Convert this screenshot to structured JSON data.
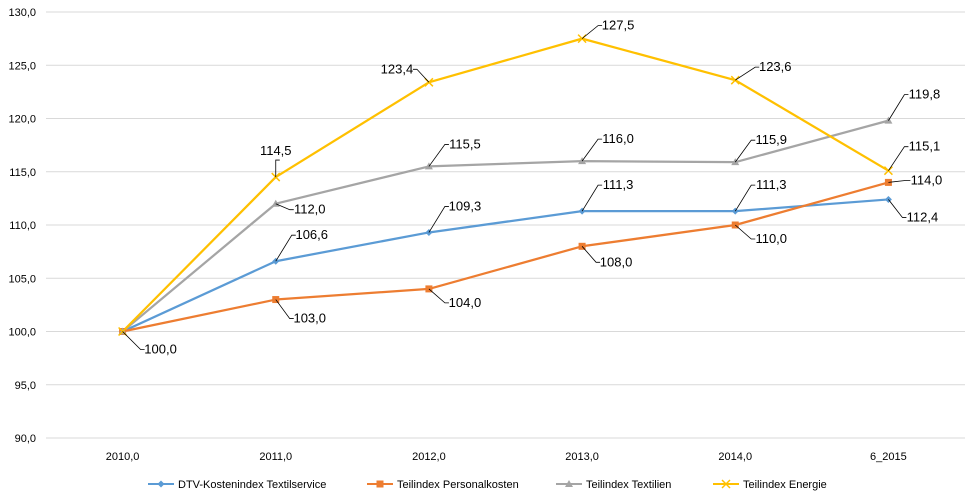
{
  "chart_data": {
    "type": "line",
    "categories": [
      "2010,0",
      "2011,0",
      "2012,0",
      "2013,0",
      "2014,0",
      "6_2015"
    ],
    "ylim": [
      90,
      130
    ],
    "yticks": [
      "90,0",
      "95,0",
      "100,0",
      "105,0",
      "110,0",
      "115,0",
      "120,0",
      "125,0",
      "130,0"
    ],
    "grid": true,
    "legend_position": "bottom",
    "series": [
      {
        "name": "DTV-Kostenindex Textilservice",
        "color": "#5b9bd5",
        "marker": "diamond",
        "values": [
          100.0,
          106.6,
          109.3,
          111.3,
          111.3,
          112.4
        ],
        "labels": [
          "",
          "106,6",
          "109,3",
          "111,3",
          "111,3",
          "112,4"
        ]
      },
      {
        "name": "Teilindex Personalkosten",
        "color": "#ed7d31",
        "marker": "square",
        "values": [
          100.0,
          103.0,
          104.0,
          108.0,
          110.0,
          114.0
        ],
        "labels": [
          "100,0",
          "103,0",
          "104,0",
          "108,0",
          "110,0",
          "114,0"
        ]
      },
      {
        "name": "Teilindex Textilien",
        "color": "#a5a5a5",
        "marker": "triangle",
        "values": [
          100.0,
          112.0,
          115.5,
          116.0,
          115.9,
          119.8
        ],
        "labels": [
          "",
          "112,0",
          "115,5",
          "116,0",
          "115,9",
          "119,8"
        ]
      },
      {
        "name": "Teilindex Energie",
        "color": "#ffc000",
        "marker": "x",
        "values": [
          100.0,
          114.5,
          123.4,
          127.5,
          123.6,
          115.1
        ],
        "labels": [
          "",
          "114,5",
          "123,4",
          "127,5",
          "123,6",
          "115,1"
        ]
      }
    ]
  }
}
